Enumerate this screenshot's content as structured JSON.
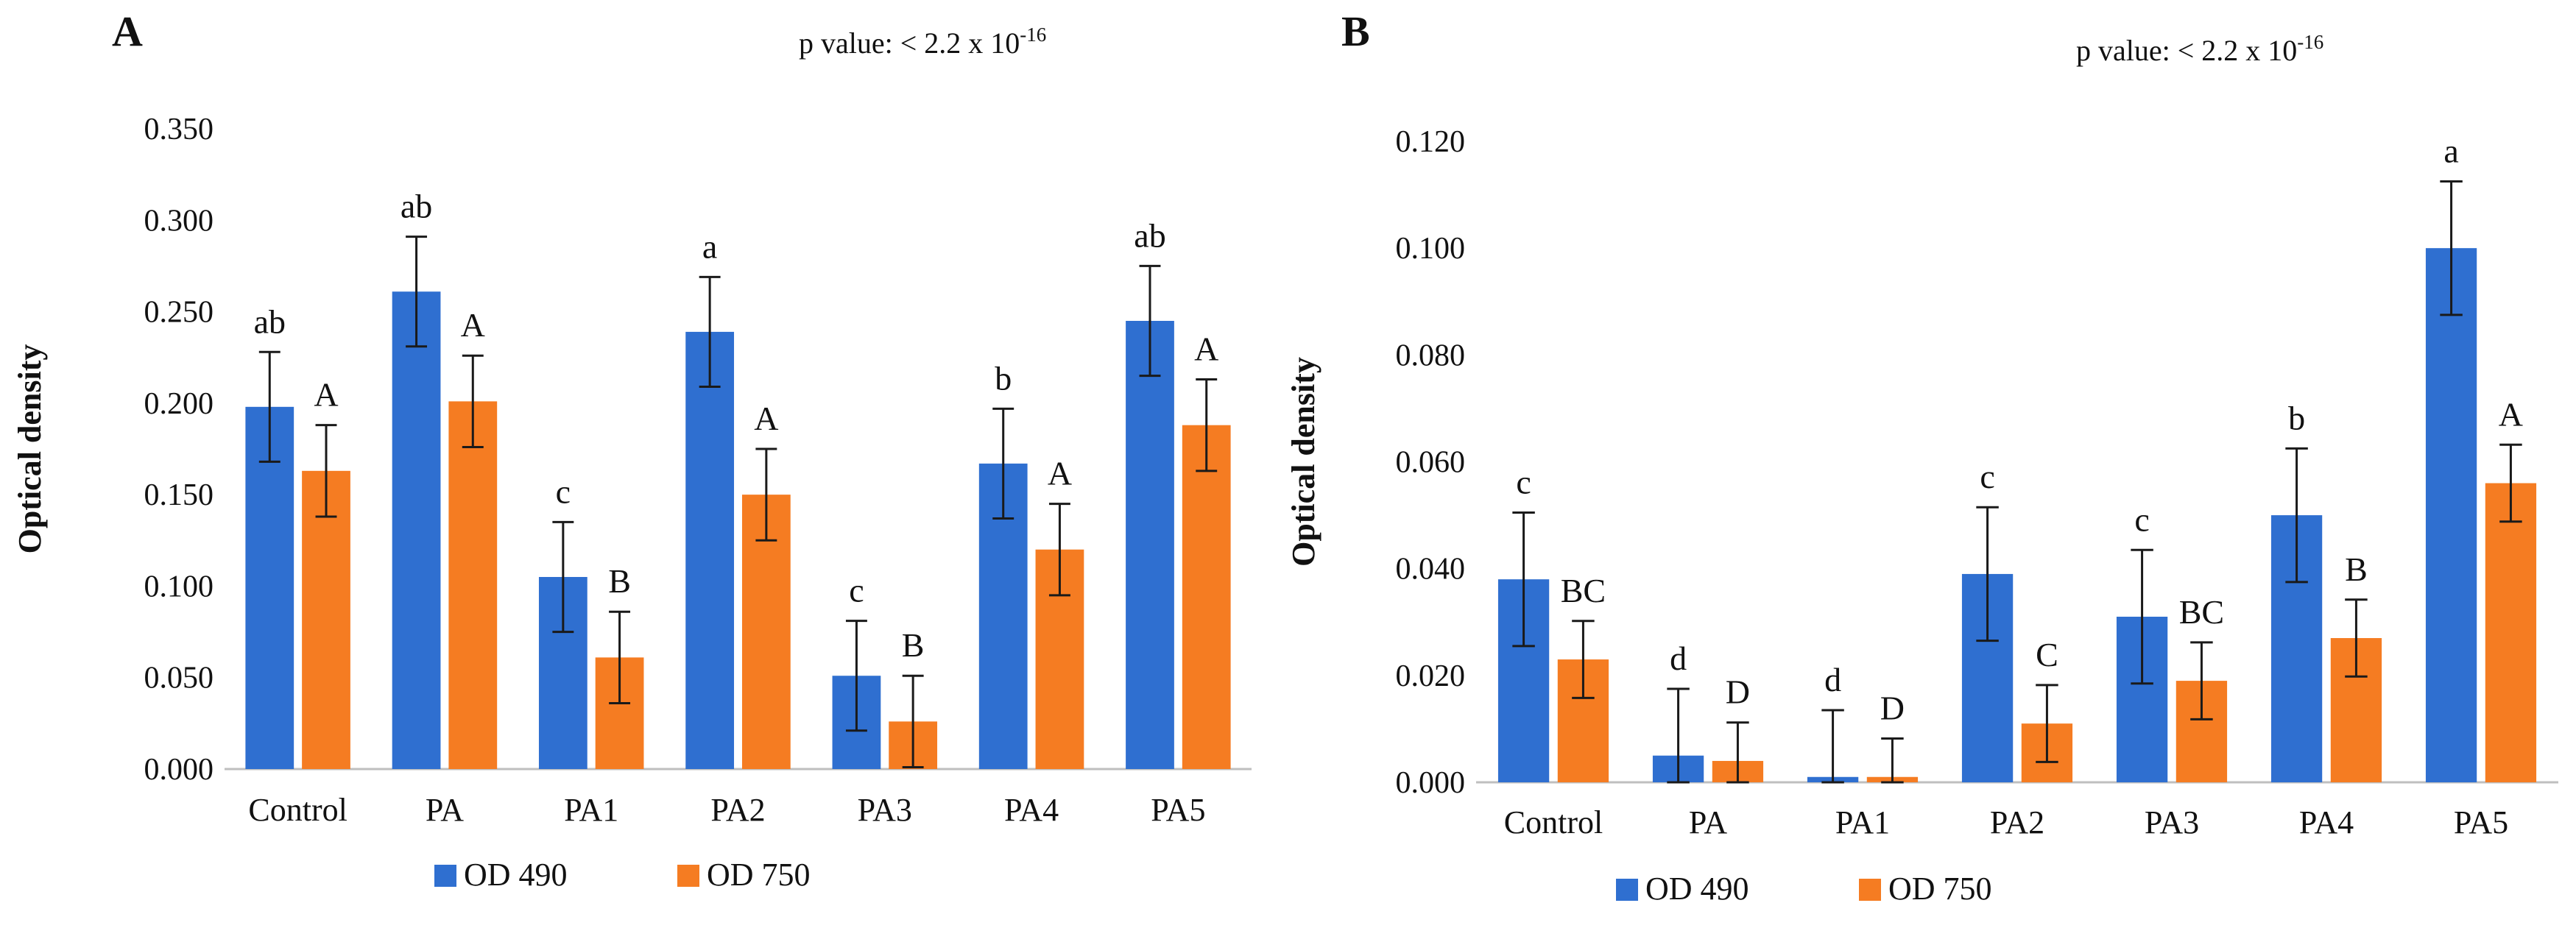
{
  "colors": {
    "od490": "#2f6fd0",
    "od750": "#f57c22",
    "error": "#1a1a1a",
    "text": "#111111",
    "axis": "#bfbfbf"
  },
  "chart_data": [
    {
      "type": "bar",
      "panel_label": "A",
      "p_value": {
        "prefix": "p value: < 2.2 x 10",
        "exponent": "-16"
      },
      "ylabel": "Optical density",
      "ylim": [
        0,
        0.35
      ],
      "yticks": [
        "0.000",
        "0.050",
        "0.100",
        "0.150",
        "0.200",
        "0.250",
        "0.300",
        "0.350"
      ],
      "categories": [
        "Control",
        "PA",
        "PA1",
        "PA2",
        "PA3",
        "PA4",
        "PA5"
      ],
      "series": [
        {
          "name": "OD 490",
          "color": "#2f6fd0",
          "values": [
            0.198,
            0.261,
            0.105,
            0.239,
            0.051,
            0.167,
            0.245
          ],
          "errors": [
            0.03,
            0.03,
            0.03,
            0.03,
            0.03,
            0.03,
            0.03
          ],
          "labels": [
            "ab",
            "ab",
            "c",
            "a",
            "c",
            "b",
            "ab"
          ]
        },
        {
          "name": "OD 750",
          "color": "#f57c22",
          "values": [
            0.163,
            0.201,
            0.061,
            0.15,
            0.026,
            0.12,
            0.188
          ],
          "errors": [
            0.025,
            0.025,
            0.025,
            0.025,
            0.025,
            0.025,
            0.025
          ],
          "labels": [
            "A",
            "A",
            "B",
            "A",
            "B",
            "A",
            "A"
          ]
        }
      ],
      "legend": [
        "OD 490",
        "OD 750"
      ]
    },
    {
      "type": "bar",
      "panel_label": "B",
      "p_value": {
        "prefix": "p value: < 2.2 x 10",
        "exponent": "-16"
      },
      "ylabel": "Optical density",
      "ylim": [
        0,
        0.12
      ],
      "yticks": [
        "0.000",
        "0.020",
        "0.040",
        "0.060",
        "0.080",
        "0.100",
        "0.120"
      ],
      "categories": [
        "Control",
        "PA",
        "PA1",
        "PA2",
        "PA3",
        "PA4",
        "PA5"
      ],
      "series": [
        {
          "name": "OD 490",
          "color": "#2f6fd0",
          "values": [
            0.038,
            0.005,
            0.001,
            0.039,
            0.031,
            0.05,
            0.1
          ],
          "errors": [
            0.0125,
            0.0125,
            0.0125,
            0.0125,
            0.0125,
            0.0125,
            0.0125
          ],
          "labels": [
            "c",
            "d",
            "d",
            "c",
            "c",
            "b",
            "a"
          ]
        },
        {
          "name": "OD 750",
          "color": "#f57c22",
          "values": [
            0.023,
            0.004,
            0.001,
            0.011,
            0.019,
            0.027,
            0.056
          ],
          "errors": [
            0.0072,
            0.0072,
            0.0072,
            0.0072,
            0.0072,
            0.0072,
            0.0072
          ],
          "labels": [
            "BC",
            "D",
            "D",
            "C",
            "BC",
            "B",
            "A"
          ]
        }
      ],
      "legend": [
        "OD 490",
        "OD 750"
      ]
    }
  ]
}
